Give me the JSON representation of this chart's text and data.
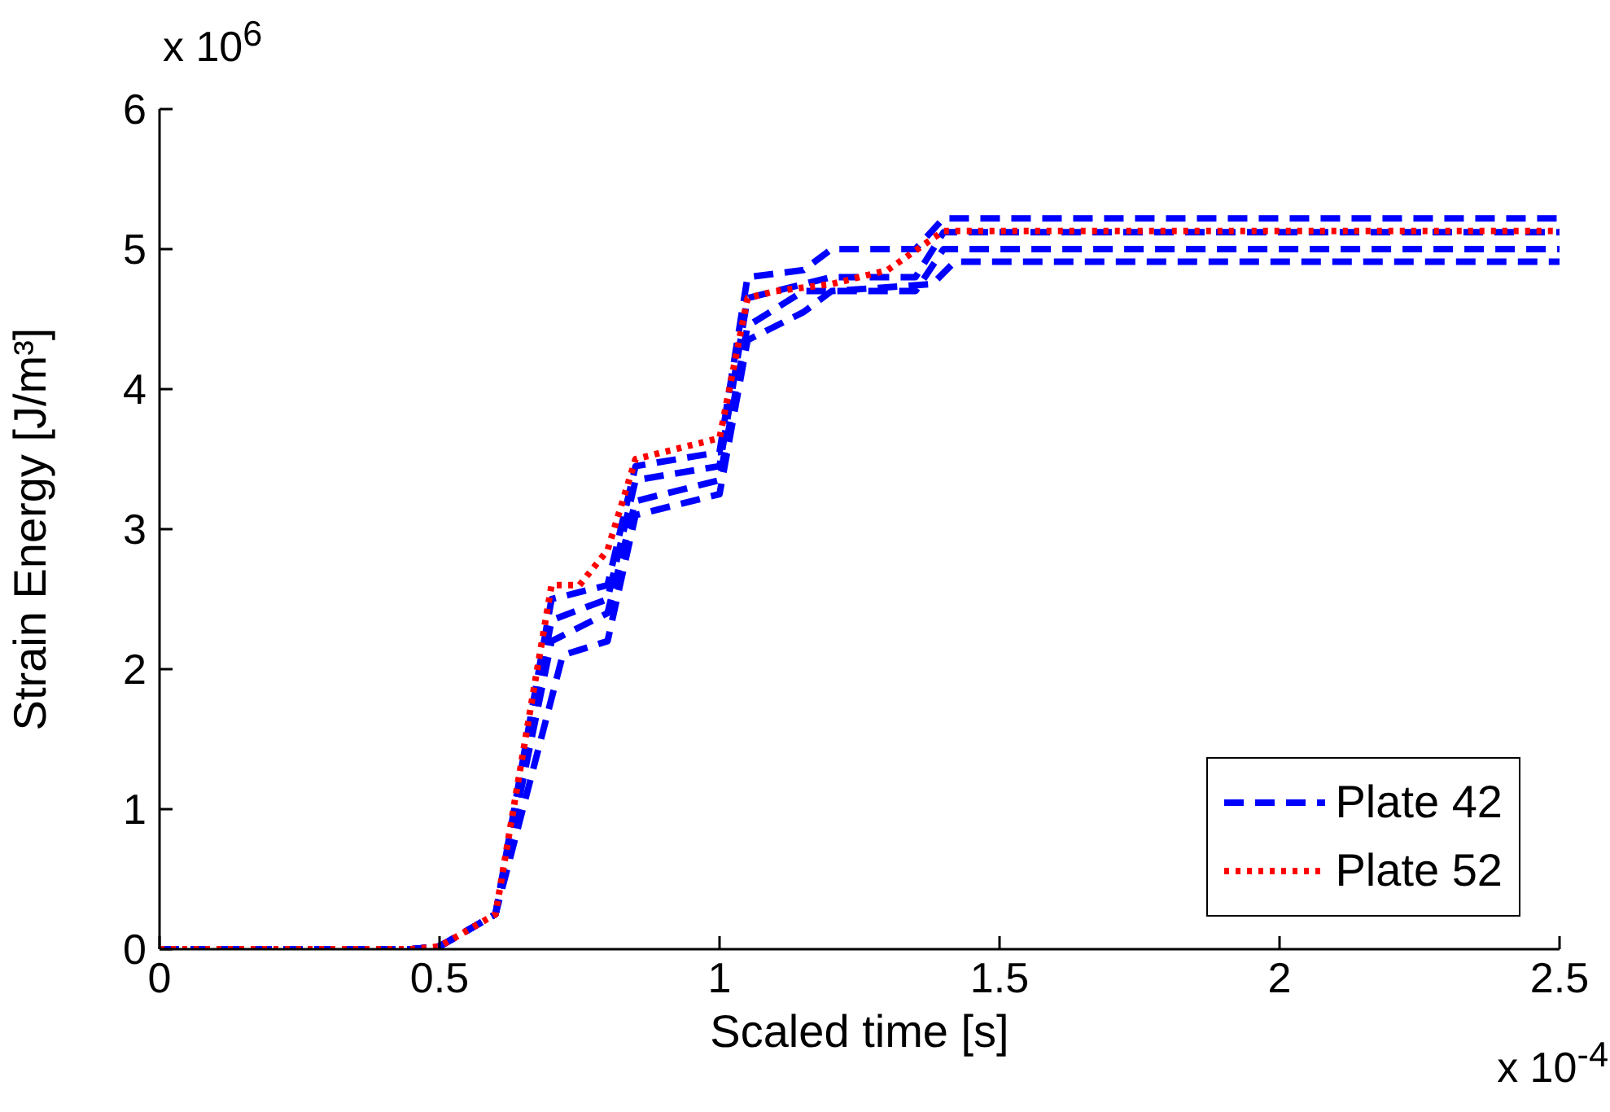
{
  "chart_data": {
    "type": "line",
    "xlabel": "Scaled time [s]",
    "ylabel": "Strain Energy [J/m³]",
    "annotations": [
      "x 10$^{6}$",
      "x 10$^{-4}$"
    ],
    "xlim": [
      0,
      2.5
    ],
    "xticks": [
      0,
      0.5,
      1,
      1.5,
      2,
      2.5
    ],
    "ylim": [
      0,
      6
    ],
    "yticks": [
      0,
      1,
      2,
      3,
      4,
      5,
      6
    ],
    "grid": false,
    "legend": "bottom right",
    "marker": "none",
    "series": [
      {
        "name": "Plate 42",
        "color": "#0000ff",
        "line_style": "dashed",
        "x": [
          0,
          0.45,
          0.5,
          0.6,
          0.7,
          0.8,
          0.85,
          1.0,
          1.05,
          1.15,
          1.2,
          1.35,
          1.4,
          2.5
        ],
        "values": [
          0,
          0,
          0.02,
          0.25,
          2.5,
          2.6,
          3.45,
          3.55,
          4.8,
          4.85,
          5.0,
          5.0,
          5.22,
          5.22
        ]
      },
      {
        "color": "#0000ff",
        "line_style": "dashed",
        "x": [
          0,
          0.45,
          0.5,
          0.6,
          0.7,
          0.8,
          0.85,
          1.0,
          1.05,
          1.2,
          1.35,
          1.4,
          2.5
        ],
        "values": [
          0,
          0,
          0.02,
          0.25,
          2.35,
          2.5,
          3.35,
          3.45,
          4.65,
          4.8,
          4.8,
          5.12,
          5.12
        ]
      },
      {
        "color": "#0000ff",
        "line_style": "dashed",
        "x": [
          0,
          0.45,
          0.5,
          0.6,
          0.7,
          0.8,
          0.85,
          1.0,
          1.05,
          1.15,
          1.35,
          1.4,
          2.5
        ],
        "values": [
          0,
          0,
          0.02,
          0.25,
          2.2,
          2.4,
          3.2,
          3.35,
          4.45,
          4.7,
          4.7,
          5.0,
          5.0
        ]
      },
      {
        "color": "#0000ff",
        "line_style": "dashed",
        "x": [
          0,
          0.45,
          0.5,
          0.6,
          0.72,
          0.8,
          0.85,
          1.0,
          1.05,
          1.15,
          1.2,
          1.38,
          1.42,
          2.5
        ],
        "values": [
          0,
          0,
          0.02,
          0.25,
          2.1,
          2.2,
          3.1,
          3.25,
          4.35,
          4.55,
          4.7,
          4.75,
          4.91,
          4.91
        ]
      },
      {
        "name": "Plate 52",
        "color": "#ff0000",
        "line_style": "dotted",
        "x": [
          0,
          0.45,
          0.5,
          0.6,
          0.7,
          0.75,
          0.8,
          0.85,
          0.95,
          1.0,
          1.05,
          1.1,
          1.2,
          1.3,
          1.4,
          2.5
        ],
        "values": [
          0,
          0,
          0.02,
          0.25,
          2.6,
          2.6,
          2.85,
          3.5,
          3.6,
          3.65,
          4.65,
          4.7,
          4.75,
          4.85,
          5.13,
          5.13
        ]
      }
    ]
  }
}
